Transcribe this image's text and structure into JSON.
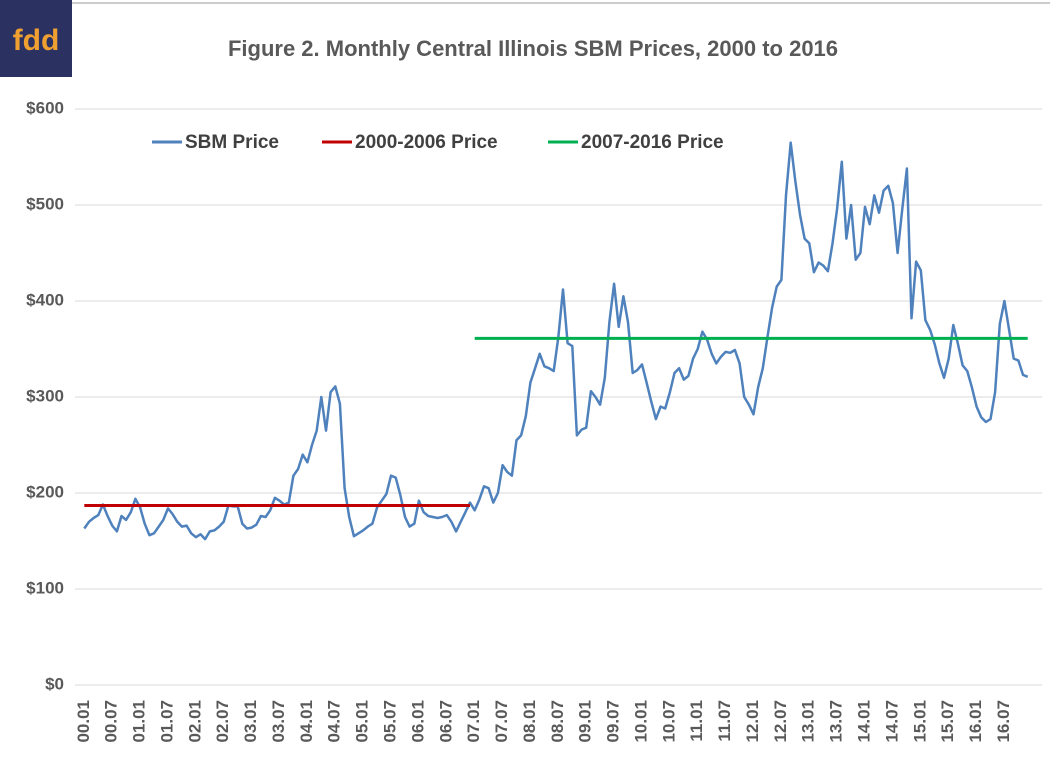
{
  "logo": "fdd",
  "chart_data": {
    "type": "line",
    "title": "Figure 2.  Monthly Central Illinois SBM Prices, 2000 to 2016",
    "legend": "top",
    "grid": true,
    "ylim": [
      0,
      600
    ],
    "yticks": [
      {
        "value": 0,
        "label": "$0"
      },
      {
        "value": 100,
        "label": "$100"
      },
      {
        "value": 200,
        "label": "$200"
      },
      {
        "value": 300,
        "label": "$300"
      },
      {
        "value": 400,
        "label": "$400"
      },
      {
        "value": 500,
        "label": "$500"
      },
      {
        "value": 600,
        "label": "$600"
      }
    ],
    "categories": [
      "00.01",
      null,
      null,
      null,
      null,
      null,
      "00.07",
      null,
      null,
      null,
      null,
      null,
      "01.01",
      null,
      null,
      null,
      null,
      null,
      "01.07",
      null,
      null,
      null,
      null,
      null,
      "02.01",
      null,
      null,
      null,
      null,
      null,
      "02.07",
      null,
      null,
      null,
      null,
      null,
      "03.01",
      null,
      null,
      null,
      null,
      null,
      "03.07",
      null,
      null,
      null,
      null,
      null,
      "04.01",
      null,
      null,
      null,
      null,
      null,
      "04.07",
      null,
      null,
      null,
      null,
      null,
      "05.01",
      null,
      null,
      null,
      null,
      null,
      "05.07",
      null,
      null,
      null,
      null,
      null,
      "06.01",
      null,
      null,
      null,
      null,
      null,
      "06.07",
      null,
      null,
      null,
      null,
      null,
      "07.01",
      null,
      null,
      null,
      null,
      null,
      "07.07",
      null,
      null,
      null,
      null,
      null,
      "08.01",
      null,
      null,
      null,
      null,
      null,
      "08.07",
      null,
      null,
      null,
      null,
      null,
      "09.01",
      null,
      null,
      null,
      null,
      null,
      "09.07",
      null,
      null,
      null,
      null,
      null,
      "10.01",
      null,
      null,
      null,
      null,
      null,
      "10.07",
      null,
      null,
      null,
      null,
      null,
      "11.01",
      null,
      null,
      null,
      null,
      null,
      "11.07",
      null,
      null,
      null,
      null,
      null,
      "12.01",
      null,
      null,
      null,
      null,
      null,
      "12.07",
      null,
      null,
      null,
      null,
      null,
      "13.01",
      null,
      null,
      null,
      null,
      null,
      "13.07",
      null,
      null,
      null,
      null,
      null,
      "14.01",
      null,
      null,
      null,
      null,
      null,
      "14.07",
      null,
      null,
      null,
      null,
      null,
      "15.01",
      null,
      null,
      null,
      null,
      null,
      "15.07",
      null,
      null,
      null,
      null,
      null,
      "16.01",
      null,
      null,
      null,
      null,
      null,
      "16.07",
      null,
      null,
      null,
      null,
      null
    ],
    "series": [
      {
        "name": "SBM Price",
        "color": "#4f81bd",
        "values": [
          163,
          170,
          174,
          177,
          188,
          176,
          166,
          160,
          176,
          172,
          180,
          194,
          185,
          168,
          156,
          158,
          165,
          172,
          184,
          178,
          170,
          165,
          166,
          158,
          154,
          157,
          152,
          160,
          161,
          165,
          170,
          187,
          186,
          186,
          168,
          163,
          164,
          167,
          176,
          175,
          182,
          195,
          192,
          188,
          190,
          218,
          225,
          240,
          232,
          250,
          265,
          300,
          265,
          305,
          311,
          293,
          205,
          175,
          155,
          158,
          161,
          165,
          168,
          185,
          192,
          199,
          218,
          216,
          198,
          175,
          165,
          168,
          192,
          180,
          176,
          175,
          174,
          175,
          177,
          170,
          160,
          170,
          180,
          190,
          182,
          193,
          207,
          205,
          190,
          200,
          229,
          222,
          218,
          255,
          260,
          280,
          315,
          330,
          345,
          332,
          330,
          327,
          362,
          412,
          356,
          353,
          260,
          266,
          268,
          306,
          300,
          292,
          320,
          378,
          418,
          373,
          405,
          378,
          325,
          328,
          334,
          315,
          295,
          277,
          290,
          288,
          305,
          325,
          330,
          318,
          322,
          340,
          350,
          368,
          360,
          345,
          335,
          342,
          347,
          346,
          349,
          335,
          300,
          292,
          282,
          310,
          330,
          362,
          393,
          415,
          422,
          510,
          565,
          525,
          490,
          465,
          460,
          430,
          440,
          437,
          431,
          460,
          496,
          545,
          465,
          500,
          443,
          450,
          498,
          480,
          510,
          492,
          515,
          520,
          502,
          450,
          495,
          538,
          382,
          441,
          432,
          380,
          370,
          355,
          335,
          320,
          340,
          375,
          355,
          333,
          327,
          310,
          290,
          279,
          274,
          277,
          305,
          376,
          400,
          370,
          340,
          338,
          323,
          321
        ]
      },
      {
        "name": "2000-2006 Price",
        "color": "#c00000",
        "values": [
          187,
          187,
          187,
          187,
          187,
          187,
          187,
          187,
          187,
          187,
          187,
          187,
          187,
          187,
          187,
          187,
          187,
          187,
          187,
          187,
          187,
          187,
          187,
          187,
          187,
          187,
          187,
          187,
          187,
          187,
          187,
          187,
          187,
          187,
          187,
          187,
          187,
          187,
          187,
          187,
          187,
          187,
          187,
          187,
          187,
          187,
          187,
          187,
          187,
          187,
          187,
          187,
          187,
          187,
          187,
          187,
          187,
          187,
          187,
          187,
          187,
          187,
          187,
          187,
          187,
          187,
          187,
          187,
          187,
          187,
          187,
          187,
          187,
          187,
          187,
          187,
          187,
          187,
          187,
          187,
          187,
          187,
          187,
          187,
          null,
          null,
          null,
          null,
          null,
          null,
          null,
          null,
          null,
          null,
          null,
          null,
          null,
          null,
          null,
          null,
          null,
          null,
          null,
          null,
          null,
          null,
          null,
          null,
          null,
          null,
          null,
          null,
          null,
          null,
          null,
          null,
          null,
          null,
          null,
          null,
          null,
          null,
          null,
          null,
          null,
          null,
          null,
          null,
          null,
          null,
          null,
          null,
          null,
          null,
          null,
          null,
          null,
          null,
          null,
          null,
          null,
          null,
          null,
          null,
          null,
          null,
          null,
          null,
          null,
          null,
          null,
          null,
          null,
          null,
          null,
          null,
          null,
          null,
          null,
          null,
          null,
          null,
          null,
          null,
          null,
          null,
          null,
          null,
          null,
          null,
          null,
          null,
          null,
          null,
          null,
          null,
          null,
          null,
          null,
          null,
          null,
          null,
          null,
          null,
          null,
          null,
          null,
          null,
          null,
          null,
          null,
          null,
          null,
          null,
          null,
          null,
          null,
          null,
          null,
          null,
          null,
          null,
          null,
          null
        ]
      },
      {
        "name": "2007-2016 Price",
        "color": "#00b050",
        "values": [
          null,
          null,
          null,
          null,
          null,
          null,
          null,
          null,
          null,
          null,
          null,
          null,
          null,
          null,
          null,
          null,
          null,
          null,
          null,
          null,
          null,
          null,
          null,
          null,
          null,
          null,
          null,
          null,
          null,
          null,
          null,
          null,
          null,
          null,
          null,
          null,
          null,
          null,
          null,
          null,
          null,
          null,
          null,
          null,
          null,
          null,
          null,
          null,
          null,
          null,
          null,
          null,
          null,
          null,
          null,
          null,
          null,
          null,
          null,
          null,
          null,
          null,
          null,
          null,
          null,
          null,
          null,
          null,
          null,
          null,
          null,
          null,
          null,
          null,
          null,
          null,
          null,
          null,
          null,
          null,
          null,
          null,
          null,
          null,
          361,
          361,
          361,
          361,
          361,
          361,
          361,
          361,
          361,
          361,
          361,
          361,
          361,
          361,
          361,
          361,
          361,
          361,
          361,
          361,
          361,
          361,
          361,
          361,
          361,
          361,
          361,
          361,
          361,
          361,
          361,
          361,
          361,
          361,
          361,
          361,
          361,
          361,
          361,
          361,
          361,
          361,
          361,
          361,
          361,
          361,
          361,
          361,
          361,
          361,
          361,
          361,
          361,
          361,
          361,
          361,
          361,
          361,
          361,
          361,
          361,
          361,
          361,
          361,
          361,
          361,
          361,
          361,
          361,
          361,
          361,
          361,
          361,
          361,
          361,
          361,
          361,
          361,
          361,
          361,
          361,
          361,
          361,
          361,
          361,
          361,
          361,
          361,
          361,
          361,
          361,
          361,
          361,
          361,
          361,
          361,
          361,
          361,
          361,
          361,
          361,
          361,
          361,
          361,
          361,
          361,
          361,
          361,
          361,
          361,
          361,
          361,
          361,
          361,
          361,
          361,
          361,
          361,
          361,
          361
        ]
      }
    ]
  }
}
